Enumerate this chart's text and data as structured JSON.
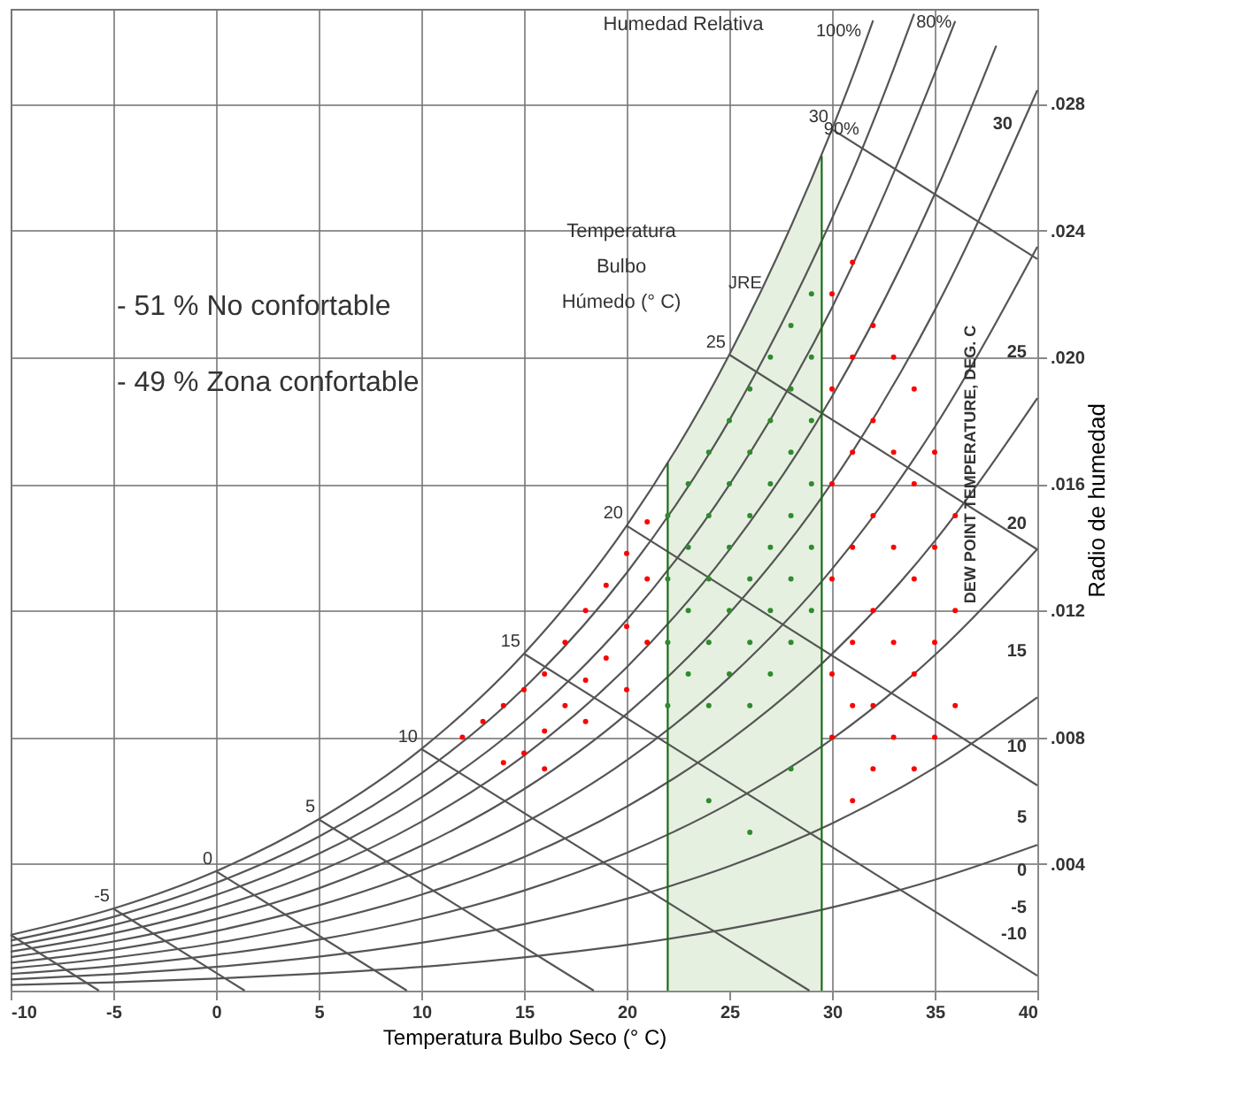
{
  "chart_data": {
    "type": "scatter",
    "xlabel": "Temperatura Bulbo Seco (° C)",
    "ylabel": "Radio de humedad",
    "xlim": [
      -10,
      40
    ],
    "xticks": [
      -10,
      -5,
      0,
      5,
      10,
      15,
      20,
      25,
      30,
      35,
      40
    ],
    "ylim": [
      0,
      0.031
    ],
    "yticks": [
      {
        "value": 0.004,
        "label": ".004"
      },
      {
        "value": 0.008,
        "label": ".008"
      },
      {
        "value": 0.012,
        "label": ".012"
      },
      {
        "value": 0.016,
        "label": ".016"
      },
      {
        "value": 0.02,
        "label": ".020"
      },
      {
        "value": 0.024,
        "label": ".024"
      },
      {
        "value": 0.028,
        "label": ".028"
      }
    ],
    "grid": true,
    "annotations": [
      "Humedad Relativa",
      "Temperatura\nBulbo\nHúmedo (° C)",
      "JRE",
      "-   51 % No confortable",
      "-   49 % Zona confortable",
      "DEW POINT TEMPERATURE, DEG. C",
      "-10",
      "-5",
      "0",
      "5",
      "10",
      "15",
      "20",
      "25",
      "30",
      {
        "text": "100%",
        "x": 31.6,
        "y": 0.0299
      },
      {
        "text": "90%",
        "x": 31.5,
        "y": 0.0268
      },
      {
        "text": "80%",
        "x": 36,
        "y": 0.0302
      },
      {
        "text": "-5",
        "x": -5,
        "y": 0.00259
      },
      {
        "text": "0",
        "x": 0,
        "y": 0.00377
      },
      {
        "text": "5",
        "x": 5,
        "y": 0.00541
      },
      {
        "text": "10",
        "x": 10,
        "y": 0.00763
      },
      {
        "text": "15",
        "x": 15,
        "y": 0.01064
      },
      {
        "text": "20",
        "x": 20,
        "y": 0.01468
      },
      {
        "text": "25",
        "x": 25,
        "y": 0.02008
      },
      {
        "text": "30",
        "x": 30,
        "y": 0.0272
      }
    ],
    "series": [
      {
        "type": "area",
        "color": "#e6f0e0",
        "x": [
          22,
          23,
          24,
          25,
          26,
          27,
          28,
          29,
          29.5
        ],
        "values": [
          0.01667,
          0.01774,
          0.01888,
          0.02008,
          0.02135,
          0.0227,
          0.02411,
          0.02562,
          0.02636
        ]
      },
      {
        "type": "line",
        "color": "#555555",
        "x": [
          -10,
          -5,
          0,
          5,
          10,
          15,
          20,
          25,
          30,
          31,
          32
        ],
        "values": [
          0.00176,
          0.00259,
          0.00377,
          0.00541,
          0.00763,
          0.01064,
          0.01468,
          0.02008,
          0.0272,
          0.02886,
          0.03063
        ]
      },
      {
        "type": "line",
        "color": "#555555",
        "x": [
          -10,
          -5,
          0,
          5,
          10,
          15,
          20,
          25,
          30,
          31,
          32,
          33,
          34
        ],
        "values": [
          0.00158,
          0.00233,
          0.0034,
          0.00486,
          0.00686,
          0.00955,
          0.01319,
          0.01801,
          0.02438,
          0.02585,
          0.02743,
          0.0291,
          0.03084
        ]
      },
      {
        "type": "line",
        "color": "#555555",
        "x": [
          -10,
          -5,
          0,
          5,
          10,
          15,
          20,
          25,
          30,
          35,
          36
        ],
        "values": [
          0.00141,
          0.00207,
          0.00302,
          0.00432,
          0.0061,
          0.00849,
          0.0117,
          0.01597,
          0.02157,
          0.02896,
          0.03061
        ]
      },
      {
        "type": "line",
        "color": "#555555",
        "x": [
          -10,
          -5,
          0,
          5,
          10,
          15,
          20,
          25,
          30,
          35,
          38
        ],
        "values": [
          0.00123,
          0.00181,
          0.00263,
          0.00377,
          0.00533,
          0.00742,
          0.01021,
          0.01392,
          0.01876,
          0.02515,
          0.02984
        ]
      },
      {
        "type": "line",
        "color": "#555555",
        "x": [
          -10,
          -5,
          0,
          5,
          10,
          15,
          20,
          25,
          30,
          35,
          40
        ],
        "values": [
          0.00106,
          0.00155,
          0.00226,
          0.00323,
          0.00457,
          0.00636,
          0.00874,
          0.01191,
          0.01604,
          0.02148,
          0.02843
        ]
      },
      {
        "type": "line",
        "color": "#555555",
        "x": [
          -10,
          -5,
          0,
          5,
          10,
          15,
          20,
          25,
          30,
          35,
          40
        ],
        "values": [
          0.00088,
          0.00129,
          0.00188,
          0.00269,
          0.00379,
          0.00529,
          0.00727,
          0.00989,
          0.01331,
          0.01779,
          0.02349
        ]
      },
      {
        "type": "line",
        "color": "#555555",
        "x": [
          -10,
          -5,
          0,
          5,
          10,
          15,
          20,
          25,
          30,
          35,
          40
        ],
        "values": [
          0.0007,
          0.00104,
          0.0015,
          0.00215,
          0.00303,
          0.00422,
          0.00581,
          0.0079,
          0.01063,
          0.01419,
          0.01871
        ]
      },
      {
        "type": "line",
        "color": "#555555",
        "x": [
          -10,
          -5,
          0,
          5,
          10,
          15,
          20,
          25,
          30,
          35,
          40
        ],
        "values": [
          0.00053,
          0.00078,
          0.00113,
          0.00161,
          0.00227,
          0.00316,
          0.00435,
          0.00591,
          0.00794,
          0.01059,
          0.01394
        ]
      },
      {
        "type": "line",
        "color": "#555555",
        "x": [
          -10,
          -5,
          0,
          5,
          10,
          15,
          20,
          25,
          30,
          35,
          40
        ],
        "values": [
          0.00035,
          0.00052,
          0.00075,
          0.00107,
          0.00151,
          0.0021,
          0.0029,
          0.00393,
          0.00528,
          0.00704,
          0.00926
        ]
      },
      {
        "type": "line",
        "color": "#555555",
        "x": [
          -10,
          -5,
          0,
          5,
          10,
          15,
          20,
          25,
          30,
          35,
          40
        ],
        "values": [
          0.00018,
          0.00026,
          0.00038,
          0.00054,
          0.00075,
          0.00105,
          0.00144,
          0.00196,
          0.00263,
          0.0035,
          0.0046
        ]
      },
      {
        "type": "line",
        "color": "#555555",
        "x": [
          -10,
          -5.7
        ],
        "values": [
          0.00176,
          0
        ]
      },
      {
        "type": "line",
        "color": "#555555",
        "x": [
          -5,
          1.4
        ],
        "values": [
          0.00259,
          0
        ]
      },
      {
        "type": "line",
        "color": "#555555",
        "x": [
          0,
          9.3
        ],
        "values": [
          0.00377,
          0
        ]
      },
      {
        "type": "line",
        "color": "#555555",
        "x": [
          5,
          18.4
        ],
        "values": [
          0.00541,
          0
        ]
      },
      {
        "type": "line",
        "color": "#555555",
        "x": [
          10,
          28.9
        ],
        "values": [
          0.00763,
          0
        ]
      },
      {
        "type": "line",
        "color": "#555555",
        "x": [
          15,
          40
        ],
        "values": [
          0.01064,
          0.00047
        ]
      },
      {
        "type": "line",
        "color": "#555555",
        "x": [
          20,
          40
        ],
        "values": [
          0.01468,
          0.00648
        ]
      },
      {
        "type": "line",
        "color": "#555555",
        "x": [
          25,
          40
        ],
        "values": [
          0.02008,
          0.01393
        ]
      },
      {
        "type": "line",
        "color": "#555555",
        "x": [
          30,
          40
        ],
        "values": [
          0.0272,
          0.0231
        ]
      },
      {
        "type": "line",
        "color": "#1a6b1a",
        "x": [
          22,
          22
        ],
        "values": [
          0,
          0.01667
        ]
      },
      {
        "type": "line",
        "color": "#1a6b1a",
        "x": [
          29.5,
          29.5
        ],
        "values": [
          0,
          0.02636
        ]
      },
      {
        "marker": "circle",
        "color": "#ff0000",
        "x": [
          12,
          13,
          14,
          15,
          15,
          16,
          16,
          17,
          17,
          18,
          18,
          19,
          19,
          20,
          20,
          21,
          21,
          21,
          14,
          16,
          18,
          20,
          30,
          30,
          30,
          30,
          30,
          30,
          31,
          31,
          31,
          31,
          31,
          31,
          31,
          32,
          32,
          32,
          32,
          32,
          32,
          33,
          33,
          33,
          33,
          33,
          34,
          34,
          34,
          34,
          34,
          35,
          35,
          35,
          35,
          36,
          36,
          36
        ],
        "values": [
          0.008,
          0.0085,
          0.009,
          0.0095,
          0.0075,
          0.01,
          0.0082,
          0.011,
          0.009,
          0.012,
          0.0098,
          0.0128,
          0.0105,
          0.0138,
          0.0115,
          0.0148,
          0.013,
          0.011,
          0.0072,
          0.007,
          0.0085,
          0.0095,
          0.022,
          0.019,
          0.016,
          0.013,
          0.01,
          0.008,
          0.023,
          0.02,
          0.017,
          0.014,
          0.011,
          0.009,
          0.006,
          0.021,
          0.018,
          0.015,
          0.012,
          0.009,
          0.007,
          0.02,
          0.017,
          0.014,
          0.011,
          0.008,
          0.019,
          0.016,
          0.013,
          0.01,
          0.007,
          0.017,
          0.014,
          0.011,
          0.008,
          0.015,
          0.012,
          0.009
        ]
      },
      {
        "marker": "circle",
        "color": "#2e8b2e",
        "x": [
          22,
          22,
          22,
          22,
          23,
          23,
          23,
          23,
          24,
          24,
          24,
          24,
          24,
          25,
          25,
          25,
          25,
          25,
          26,
          26,
          26,
          26,
          26,
          26,
          27,
          27,
          27,
          27,
          27,
          27,
          28,
          28,
          28,
          28,
          28,
          28,
          29,
          29,
          29,
          29,
          29,
          29,
          24,
          26,
          28
        ],
        "values": [
          0.009,
          0.011,
          0.013,
          0.015,
          0.01,
          0.012,
          0.014,
          0.016,
          0.009,
          0.011,
          0.013,
          0.015,
          0.017,
          0.01,
          0.012,
          0.014,
          0.016,
          0.018,
          0.009,
          0.011,
          0.013,
          0.015,
          0.017,
          0.019,
          0.01,
          0.012,
          0.014,
          0.016,
          0.018,
          0.02,
          0.011,
          0.013,
          0.015,
          0.017,
          0.019,
          0.021,
          0.012,
          0.014,
          0.016,
          0.018,
          0.02,
          0.022,
          0.006,
          0.005,
          0.007
        ]
      }
    ]
  }
}
